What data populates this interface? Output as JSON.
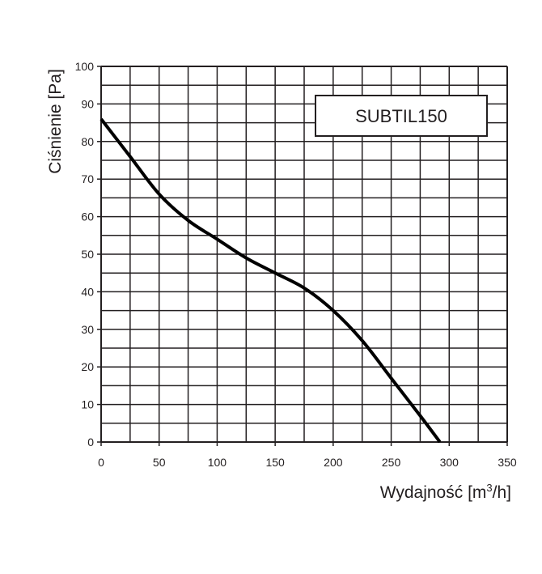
{
  "chart_data": {
    "type": "line",
    "title": "",
    "xlabel": "Wydajność [m",
    "xlabel_sup": "3",
    "xlabel_tail": "/h]",
    "ylabel": "Ciśnienie [Pa]",
    "xlim": [
      0,
      350
    ],
    "ylim": [
      0,
      100
    ],
    "x_ticks": [
      0,
      50,
      100,
      150,
      200,
      250,
      300,
      350
    ],
    "y_ticks": [
      0,
      10,
      20,
      30,
      40,
      50,
      60,
      70,
      80,
      90,
      100
    ],
    "x_minor_step": 25,
    "y_minor_step": 5,
    "grid": true,
    "legend_position": "top-right",
    "colors": {
      "line": "#000000",
      "grid": "#231f20",
      "text": "#231f20"
    },
    "series": [
      {
        "name": "SUBTIL150",
        "x": [
          0,
          25,
          50,
          75,
          100,
          125,
          150,
          175,
          200,
          225,
          250,
          275,
          292
        ],
        "y": [
          86,
          76,
          66,
          59,
          54,
          49,
          45,
          41,
          35,
          27,
          17,
          7,
          0
        ]
      }
    ]
  }
}
